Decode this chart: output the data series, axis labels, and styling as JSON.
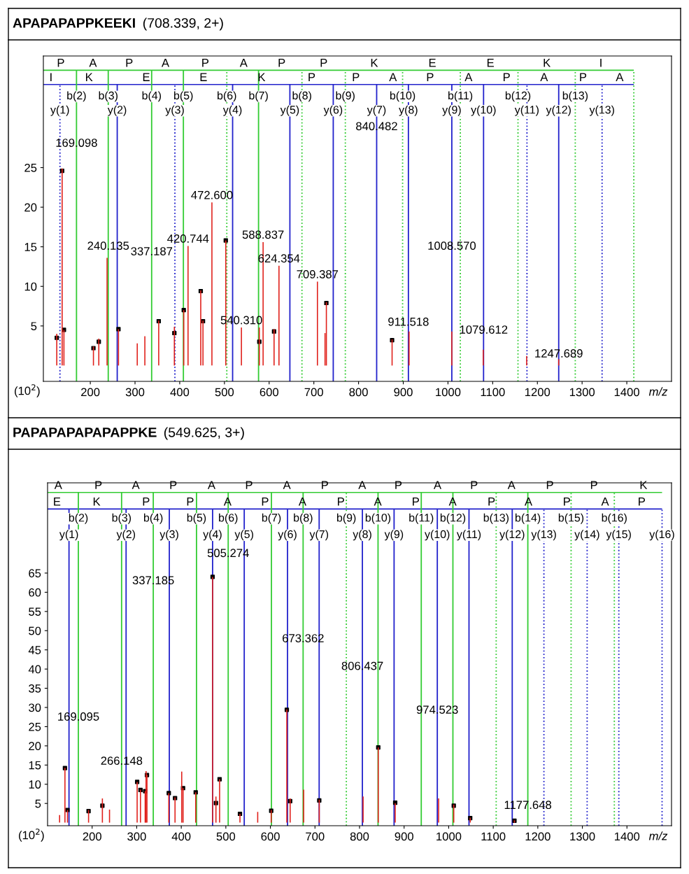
{
  "chart_data": [
    {
      "type": "bar",
      "title": "APAPAPAPPKEEKI",
      "subtitle": "(708.339, 2+)",
      "xlabel": "m/z",
      "xlim": [
        95,
        1500
      ],
      "ylim": [
        -2.0,
        39.1
      ],
      "xticks": [
        200,
        300,
        400,
        500,
        600,
        700,
        800,
        900,
        1000,
        1100,
        1200,
        1300,
        1400
      ],
      "yticks": [
        5,
        10,
        15,
        20,
        25
      ],
      "grid": false,
      "series": [
        {
          "type": "bar",
          "color": "#e0201b",
          "x": [
            125,
            137,
            141,
            207,
            219,
            237.5,
            263,
            305,
            322,
            353,
            388,
            409,
            418.6,
            447,
            452,
            472,
            503,
            538,
            578,
            586.5,
            611,
            622,
            708,
            725,
            728,
            875,
            913,
            1008.6,
            1079,
            1176,
            1247.7
          ],
          "values": [
            4.0,
            24.9,
            4.5,
            2.4,
            3.4,
            13.6,
            4.6,
            2.8,
            3.7,
            5.7,
            4.9,
            7.0,
            15.1,
            9.5,
            5.7,
            20.6,
            15.8,
            4.8,
            4.8,
            15.6,
            4.6,
            12.6,
            10.6,
            4.1,
            8.0,
            3.3,
            4.3,
            4.3,
            2.0,
            1.2,
            0.8
          ]
        },
        {
          "type": "scatter",
          "marker": "square",
          "color": "#000000",
          "x": [
            125,
            137,
            141,
            207,
            219,
            263,
            353,
            388,
            409,
            447,
            452,
            503,
            578,
            611,
            728,
            875
          ],
          "values": [
            3.5,
            24.6,
            4.5,
            2.2,
            3.0,
            4.6,
            5.6,
            4.1,
            7.0,
            9.4,
            5.6,
            15.8,
            3.0,
            4.3,
            7.9,
            3.2
          ]
        }
      ],
      "ref_lines": [
        {
          "axis": "y",
          "value": 37.3,
          "color": "#33cc33",
          "line_style": "solid",
          "label": null
        },
        {
          "axis": "y",
          "value": 35.5,
          "color": "#2222cc",
          "line_style": "solid",
          "label": null
        },
        {
          "axis": "x",
          "value": 132.1,
          "color": "#2222cc",
          "line_style": "dotted",
          "label": "y(1)"
        },
        {
          "axis": "x",
          "value": 169.1,
          "color": "#33cc33",
          "line_style": "solid",
          "label": "b(2)"
        },
        {
          "axis": "x",
          "value": 240.1,
          "color": "#33cc33",
          "line_style": "solid",
          "label": "b(3)"
        },
        {
          "axis": "x",
          "value": 260.2,
          "color": "#2222cc",
          "line_style": "solid",
          "label": "y(2)"
        },
        {
          "axis": "x",
          "value": 337.2,
          "color": "#33cc33",
          "line_style": "solid",
          "label": "b(4)"
        },
        {
          "axis": "x",
          "value": 389.2,
          "color": "#2222cc",
          "line_style": "dotted",
          "label": "y(3)"
        },
        {
          "axis": "x",
          "value": 408.2,
          "color": "#33cc33",
          "line_style": "solid",
          "label": "b(5)"
        },
        {
          "axis": "x",
          "value": 505.3,
          "color": "#33cc33",
          "line_style": "dotted",
          "label": "b(6)"
        },
        {
          "axis": "x",
          "value": 518.3,
          "color": "#2222cc",
          "line_style": "solid",
          "label": "y(4)"
        },
        {
          "axis": "x",
          "value": 576.3,
          "color": "#33cc33",
          "line_style": "solid",
          "label": "b(7)"
        },
        {
          "axis": "x",
          "value": 646.4,
          "color": "#2222cc",
          "line_style": "solid",
          "label": "y(5)"
        },
        {
          "axis": "x",
          "value": 673.4,
          "color": "#33cc33",
          "line_style": "dotted",
          "label": "b(8)"
        },
        {
          "axis": "x",
          "value": 743.4,
          "color": "#2222cc",
          "line_style": "solid",
          "label": "y(6)"
        },
        {
          "axis": "x",
          "value": 770.4,
          "color": "#33cc33",
          "line_style": "dotted",
          "label": "b(9)"
        },
        {
          "axis": "x",
          "value": 840.5,
          "color": "#2222cc",
          "line_style": "solid",
          "label": "y(7)"
        },
        {
          "axis": "x",
          "value": 898.5,
          "color": "#33cc33",
          "line_style": "dotted",
          "label": "b(10)"
        },
        {
          "axis": "x",
          "value": 911.5,
          "color": "#2222cc",
          "line_style": "solid",
          "label": "y(8)"
        },
        {
          "axis": "x",
          "value": 1008.6,
          "color": "#2222cc",
          "line_style": "solid",
          "label": "y(9)"
        },
        {
          "axis": "x",
          "value": 1027.6,
          "color": "#33cc33",
          "line_style": "dotted",
          "label": "b(11)"
        },
        {
          "axis": "x",
          "value": 1079.6,
          "color": "#2222cc",
          "line_style": "solid",
          "label": "y(10)"
        },
        {
          "axis": "x",
          "value": 1156.6,
          "color": "#33cc33",
          "line_style": "dotted",
          "label": "b(12)"
        },
        {
          "axis": "x",
          "value": 1176.7,
          "color": "#2222cc",
          "line_style": "dotted",
          "label": "y(11)"
        },
        {
          "axis": "x",
          "value": 1247.7,
          "color": "#2222cc",
          "line_style": "solid",
          "label": "y(12)"
        },
        {
          "axis": "x",
          "value": 1284.7,
          "color": "#33cc33",
          "line_style": "dotted",
          "label": "b(13)"
        },
        {
          "axis": "x",
          "value": 1344.7,
          "color": "#2222cc",
          "line_style": "dotted",
          "label": "y(13)"
        },
        {
          "axis": "x",
          "value": 1415.7,
          "color": "#33cc33",
          "line_style": "dotted",
          "label": null
        }
      ],
      "annotations": [
        {
          "text": "P",
          "x": 134,
          "y": 37.3
        },
        {
          "text": "A",
          "x": 206,
          "y": 37.3
        },
        {
          "text": "P",
          "x": 287,
          "y": 37.3
        },
        {
          "text": "A",
          "x": 368,
          "y": 37.3
        },
        {
          "text": "P",
          "x": 457,
          "y": 37.3
        },
        {
          "text": "A",
          "x": 543,
          "y": 37.3
        },
        {
          "text": "P",
          "x": 628,
          "y": 37.3
        },
        {
          "text": "P",
          "x": 722,
          "y": 37.3
        },
        {
          "text": "K",
          "x": 835,
          "y": 37.3
        },
        {
          "text": "E",
          "x": 965,
          "y": 37.3
        },
        {
          "text": "E",
          "x": 1095,
          "y": 37.3
        },
        {
          "text": "K",
          "x": 1221,
          "y": 37.3
        },
        {
          "text": "I",
          "x": 1342,
          "y": 37.3
        },
        {
          "text": "I",
          "x": 112,
          "y": 35.5
        },
        {
          "text": "K",
          "x": 197,
          "y": 35.5
        },
        {
          "text": "E",
          "x": 325,
          "y": 35.5
        },
        {
          "text": "E",
          "x": 453,
          "y": 35.5
        },
        {
          "text": "K",
          "x": 583,
          "y": 35.5
        },
        {
          "text": "P",
          "x": 695,
          "y": 35.5
        },
        {
          "text": "P",
          "x": 794,
          "y": 35.5
        },
        {
          "text": "A",
          "x": 877,
          "y": 35.5
        },
        {
          "text": "P",
          "x": 960,
          "y": 35.5
        },
        {
          "text": "A",
          "x": 1046,
          "y": 35.5
        },
        {
          "text": "P",
          "x": 1131,
          "y": 35.5
        },
        {
          "text": "A",
          "x": 1215,
          "y": 35.5
        },
        {
          "text": "P",
          "x": 1302,
          "y": 35.5
        },
        {
          "text": "A",
          "x": 1384,
          "y": 35.5
        },
        {
          "text": "169.098",
          "x": 169.1,
          "y": 27.2
        },
        {
          "text": "840.482",
          "x": 840.5,
          "y": 29.3
        },
        {
          "text": "472.600",
          "x": 472,
          "y": 20.6
        },
        {
          "text": "240.135",
          "x": 240.1,
          "y": 14.2
        },
        {
          "text": "337.187",
          "x": 337.2,
          "y": 13.5
        },
        {
          "text": "420.744",
          "x": 418.6,
          "y": 15.1
        },
        {
          "text": "588.837",
          "x": 586.5,
          "y": 15.6
        },
        {
          "text": "624.354",
          "x": 622,
          "y": 12.6
        },
        {
          "text": "709.387",
          "x": 708,
          "y": 10.6
        },
        {
          "text": "1008.570",
          "x": 1008.6,
          "y": 14.2
        },
        {
          "text": "540.310",
          "x": 538,
          "y": 4.8
        },
        {
          "text": "911.518",
          "x": 911.5,
          "y": 4.6
        },
        {
          "text": "1079.612",
          "x": 1079.6,
          "y": 3.6
        },
        {
          "text": "1247.689",
          "x": 1247.7,
          "y": 0.6
        },
        "(10$^{2}$)"
      ]
    },
    {
      "type": "bar",
      "title": "PAPAPAPAPAPAPPKE",
      "subtitle": "(549.625, 3+)",
      "xlabel": "m/z",
      "xlim": [
        100,
        1500
      ],
      "ylim": [
        -0.8,
        88.5
      ],
      "xticks": [
        200,
        300,
        400,
        500,
        600,
        700,
        800,
        900,
        1000,
        1100,
        1200,
        1300,
        1400
      ],
      "yticks": [
        5,
        10,
        15,
        20,
        25,
        30,
        35,
        40,
        45,
        50,
        55,
        60,
        65
      ],
      "grid": false,
      "series": [
        {
          "type": "bar",
          "color": "#e0201b",
          "x": [
            127,
            139,
            144.8,
            192,
            223,
            239,
            301,
            308.5,
            319,
            321,
            323,
            372,
            386,
            401,
            404,
            432.4,
            470.3,
            477.8,
            486,
            531.7,
            571.5,
            601.8,
            636.8,
            644.3,
            674.6,
            709.6,
            808,
            842,
            880,
            977.4,
            1011.4,
            1048.3,
            1147.6
          ],
          "values": [
            2.0,
            14.3,
            3.3,
            3.3,
            6.3,
            3.4,
            10.6,
            8.6,
            8.2,
            13.4,
            12.5,
            7.7,
            6.6,
            13.3,
            9.0,
            7.9,
            64.0,
            6.8,
            11.3,
            2.3,
            2.8,
            3.3,
            29.5,
            6.3,
            8.6,
            6.0,
            6.8,
            19.6,
            5.1,
            6.3,
            4.7,
            1.3,
            0.6
          ]
        },
        {
          "type": "scatter",
          "marker": "square",
          "color": "#000000",
          "x": [
            139,
            144.8,
            192,
            223,
            301,
            308.5,
            319,
            323,
            372,
            386,
            404,
            432.4,
            470.3,
            477.8,
            486,
            531.7,
            601.8,
            636.8,
            644.3,
            709.6,
            842,
            880,
            1011.4,
            1048.3,
            1147.6
          ],
          "values": [
            14.2,
            3.3,
            3.0,
            4.4,
            10.6,
            8.5,
            8.2,
            12.4,
            7.7,
            6.4,
            9.0,
            7.9,
            64.0,
            5.1,
            11.3,
            2.3,
            3.1,
            29.4,
            5.6,
            5.8,
            19.6,
            5.2,
            4.4,
            1.2,
            0.5
          ]
        }
      ],
      "ref_lines": [
        {
          "axis": "y",
          "value": 86.0,
          "color": "#33cc33",
          "line_style": "solid",
          "label": null
        },
        {
          "axis": "y",
          "value": 81.7,
          "color": "#2222cc",
          "line_style": "solid",
          "label": null
        },
        {
          "axis": "x",
          "value": 148.1,
          "color": "#2222cc",
          "line_style": "solid",
          "label": "y(1)"
        },
        {
          "axis": "x",
          "value": 169.1,
          "color": "#33cc33",
          "line_style": "solid",
          "label": "b(2)"
        },
        {
          "axis": "x",
          "value": 266.1,
          "color": "#33cc33",
          "line_style": "solid",
          "label": "b(3)"
        },
        {
          "axis": "x",
          "value": 276.2,
          "color": "#2222cc",
          "line_style": "solid",
          "label": "y(2)"
        },
        {
          "axis": "x",
          "value": 337.2,
          "color": "#33cc33",
          "line_style": "solid",
          "label": "b(4)"
        },
        {
          "axis": "x",
          "value": 373.2,
          "color": "#2222cc",
          "line_style": "solid",
          "label": "y(3)"
        },
        {
          "axis": "x",
          "value": 434.2,
          "color": "#33cc33",
          "line_style": "solid",
          "label": "b(5)"
        },
        {
          "axis": "x",
          "value": 470.3,
          "color": "#2222cc",
          "line_style": "solid",
          "label": "y(4)"
        },
        {
          "axis": "x",
          "value": 505.3,
          "color": "#33cc33",
          "line_style": "solid",
          "label": "b(6)"
        },
        {
          "axis": "x",
          "value": 541.3,
          "color": "#2222cc",
          "line_style": "solid",
          "label": "y(5)"
        },
        {
          "axis": "x",
          "value": 602.3,
          "color": "#33cc33",
          "line_style": "solid",
          "label": "b(7)"
        },
        {
          "axis": "x",
          "value": 638.4,
          "color": "#2222cc",
          "line_style": "solid",
          "label": "y(6)"
        },
        {
          "axis": "x",
          "value": 673.4,
          "color": "#33cc33",
          "line_style": "solid",
          "label": "b(8)"
        },
        {
          "axis": "x",
          "value": 709.4,
          "color": "#2222cc",
          "line_style": "solid",
          "label": "y(7)"
        },
        {
          "axis": "x",
          "value": 770.4,
          "color": "#33cc33",
          "line_style": "dotted",
          "label": "b(9)"
        },
        {
          "axis": "x",
          "value": 806.4,
          "color": "#2222cc",
          "line_style": "solid",
          "label": "y(8)"
        },
        {
          "axis": "x",
          "value": 841.5,
          "color": "#33cc33",
          "line_style": "solid",
          "label": "b(10)"
        },
        {
          "axis": "x",
          "value": 877.5,
          "color": "#2222cc",
          "line_style": "solid",
          "label": "y(9)"
        },
        {
          "axis": "x",
          "value": 938.5,
          "color": "#33cc33",
          "line_style": "solid",
          "label": "b(11)"
        },
        {
          "axis": "x",
          "value": 974.5,
          "color": "#2222cc",
          "line_style": "solid",
          "label": "y(10)"
        },
        {
          "axis": "x",
          "value": 1009.5,
          "color": "#33cc33",
          "line_style": "solid",
          "label": "b(12)"
        },
        {
          "axis": "x",
          "value": 1045.6,
          "color": "#2222cc",
          "line_style": "solid",
          "label": "y(11)"
        },
        {
          "axis": "x",
          "value": 1106.6,
          "color": "#33cc33",
          "line_style": "dotted",
          "label": "b(13)"
        },
        {
          "axis": "x",
          "value": 1142.6,
          "color": "#2222cc",
          "line_style": "solid",
          "label": "y(12)"
        },
        {
          "axis": "x",
          "value": 1177.6,
          "color": "#33cc33",
          "line_style": "solid",
          "label": "b(14)"
        },
        {
          "axis": "x",
          "value": 1213.7,
          "color": "#2222cc",
          "line_style": "dotted",
          "label": "y(13)"
        },
        {
          "axis": "x",
          "value": 1274.7,
          "color": "#33cc33",
          "line_style": "dotted",
          "label": "b(15)"
        },
        {
          "axis": "x",
          "value": 1310.7,
          "color": "#2222cc",
          "line_style": "dotted",
          "label": "y(14)"
        },
        {
          "axis": "x",
          "value": 1371.7,
          "color": "#33cc33",
          "line_style": "dotted",
          "label": "b(16)"
        },
        {
          "axis": "x",
          "value": 1381.8,
          "color": "#2222cc",
          "line_style": "dotted",
          "label": "y(15)"
        },
        {
          "axis": "x",
          "value": 1478.8,
          "color": "#2222cc",
          "line_style": "dotted",
          "label": "y(16)"
        }
      ],
      "annotations": [
        {
          "text": "A",
          "x": 124,
          "y": 86.0
        },
        {
          "text": "P",
          "x": 214,
          "y": 86.0
        },
        {
          "text": "A",
          "x": 298,
          "y": 86.0
        },
        {
          "text": "P",
          "x": 382,
          "y": 86.0
        },
        {
          "text": "A",
          "x": 468,
          "y": 86.0
        },
        {
          "text": "P",
          "x": 552,
          "y": 86.0
        },
        {
          "text": "A",
          "x": 637,
          "y": 86.0
        },
        {
          "text": "P",
          "x": 722,
          "y": 86.0
        },
        {
          "text": "A",
          "x": 806,
          "y": 86.0
        },
        {
          "text": "P",
          "x": 887,
          "y": 86.0
        },
        {
          "text": "A",
          "x": 975,
          "y": 86.0
        },
        {
          "text": "P",
          "x": 1057,
          "y": 86.0
        },
        {
          "text": "A",
          "x": 1141,
          "y": 86.0
        },
        {
          "text": "P",
          "x": 1227,
          "y": 86.0
        },
        {
          "text": "P",
          "x": 1326,
          "y": 86.0
        },
        {
          "text": "K",
          "x": 1437,
          "y": 86.0
        },
        {
          "text": "E",
          "x": 121,
          "y": 81.7
        },
        {
          "text": "K",
          "x": 210,
          "y": 81.7
        },
        {
          "text": "P",
          "x": 321,
          "y": 81.7
        },
        {
          "text": "P",
          "x": 420,
          "y": 81.7
        },
        {
          "text": "A",
          "x": 504,
          "y": 81.7
        },
        {
          "text": "P",
          "x": 588,
          "y": 81.7
        },
        {
          "text": "A",
          "x": 672,
          "y": 81.7
        },
        {
          "text": "P",
          "x": 758,
          "y": 81.7
        },
        {
          "text": "A",
          "x": 841,
          "y": 81.7
        },
        {
          "text": "P",
          "x": 926,
          "y": 81.7
        },
        {
          "text": "A",
          "x": 1009,
          "y": 81.7
        },
        {
          "text": "P",
          "x": 1096,
          "y": 81.7
        },
        {
          "text": "A",
          "x": 1179,
          "y": 81.7
        },
        {
          "text": "P",
          "x": 1265,
          "y": 81.7
        },
        {
          "text": "A",
          "x": 1351,
          "y": 81.7
        },
        {
          "text": "P",
          "x": 1433,
          "y": 81.7
        },
        {
          "text": "505.274",
          "x": 505.3,
          "y": 68.3
        },
        {
          "text": "337.185",
          "x": 337.2,
          "y": 61.2
        },
        {
          "text": "673.362",
          "x": 673.4,
          "y": 46.1
        },
        {
          "text": "806.437",
          "x": 806.4,
          "y": 38.9
        },
        {
          "text": "169.095",
          "x": 169.1,
          "y": 25.7
        },
        {
          "text": "974.523",
          "x": 974.5,
          "y": 27.5
        },
        {
          "text": "266.148",
          "x": 266.1,
          "y": 14.2
        },
        {
          "text": "1177.648",
          "x": 1177.6,
          "y": 2.7
        },
        "(10$^{2}$)"
      ]
    }
  ]
}
